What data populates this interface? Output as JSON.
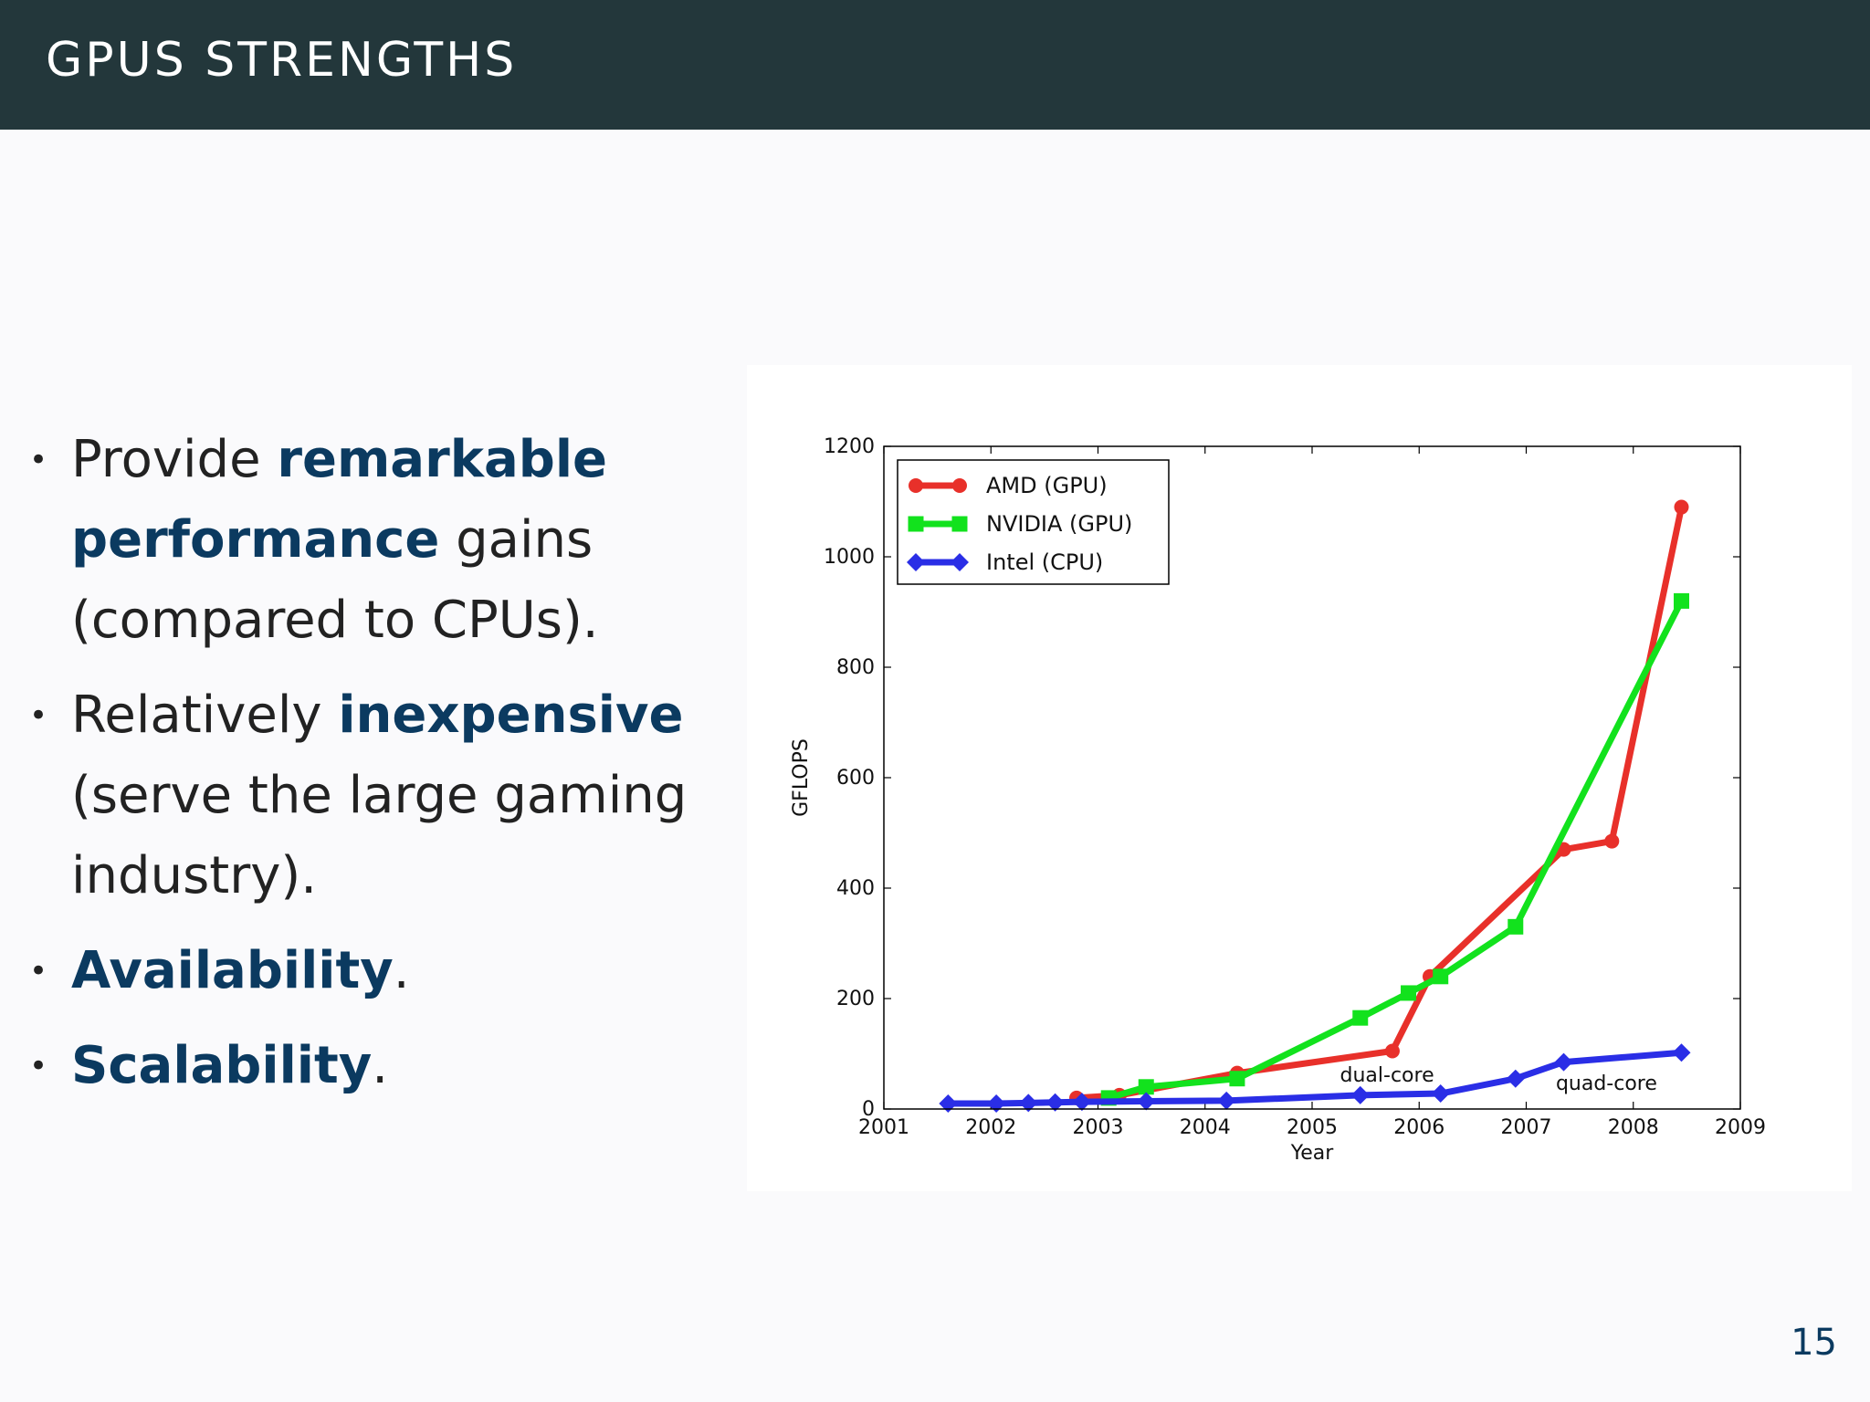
{
  "slide": {
    "title": "GPUS STRENGTHS",
    "page_number": "15"
  },
  "bullets": [
    {
      "parts": [
        {
          "text": "Provide ",
          "emph": false
        },
        {
          "text": "remarkable performance",
          "emph": true
        },
        {
          "text": " gains (compared to CPUs).",
          "emph": false
        }
      ]
    },
    {
      "parts": [
        {
          "text": "Relatively ",
          "emph": false
        },
        {
          "text": "inexpensive",
          "emph": true
        },
        {
          "text": " (serve the large gaming industry).",
          "emph": false
        }
      ]
    },
    {
      "parts": [
        {
          "text": "Availability",
          "emph": true
        },
        {
          "text": ".",
          "emph": false
        }
      ]
    },
    {
      "parts": [
        {
          "text": "Scalability",
          "emph": true
        },
        {
          "text": ".",
          "emph": false
        }
      ]
    }
  ],
  "chart_data": {
    "type": "line",
    "title": "",
    "xlabel": "Year",
    "ylabel": "GFLOPS",
    "xlim": [
      2001,
      2009
    ],
    "ylim": [
      0,
      1200
    ],
    "xticks": [
      2001,
      2002,
      2003,
      2004,
      2005,
      2006,
      2007,
      2008,
      2009
    ],
    "yticks": [
      0,
      200,
      400,
      600,
      800,
      1000,
      1200
    ],
    "grid": false,
    "legend_position": "top-left",
    "series": [
      {
        "name": "AMD (GPU)",
        "color": "#e8302a",
        "marker": "circle",
        "x": [
          2002.8,
          2003.2,
          2004.3,
          2005.75,
          2006.1,
          2007.35,
          2007.8,
          2008.45
        ],
        "y": [
          20,
          25,
          65,
          105,
          240,
          470,
          485,
          1090
        ]
      },
      {
        "name": "NVIDIA (GPU)",
        "color": "#12e21d",
        "marker": "square",
        "x": [
          2003.1,
          2003.45,
          2004.3,
          2005.45,
          2005.9,
          2006.2,
          2006.9,
          2008.45
        ],
        "y": [
          20,
          40,
          55,
          165,
          210,
          240,
          330,
          920
        ]
      },
      {
        "name": "Intel (CPU)",
        "color": "#2a2ee6",
        "marker": "diamond",
        "x": [
          2001.6,
          2002.05,
          2002.35,
          2002.6,
          2002.85,
          2003.45,
          2004.2,
          2005.45,
          2006.2,
          2006.9,
          2007.35,
          2008.45
        ],
        "y": [
          10,
          10,
          11,
          12,
          13,
          14,
          15,
          25,
          28,
          55,
          85,
          102
        ]
      }
    ],
    "annotations": [
      {
        "text": "dual-core",
        "x": 2005.7,
        "y": 50
      },
      {
        "text": "quad-core",
        "x": 2007.75,
        "y": 35
      }
    ]
  }
}
